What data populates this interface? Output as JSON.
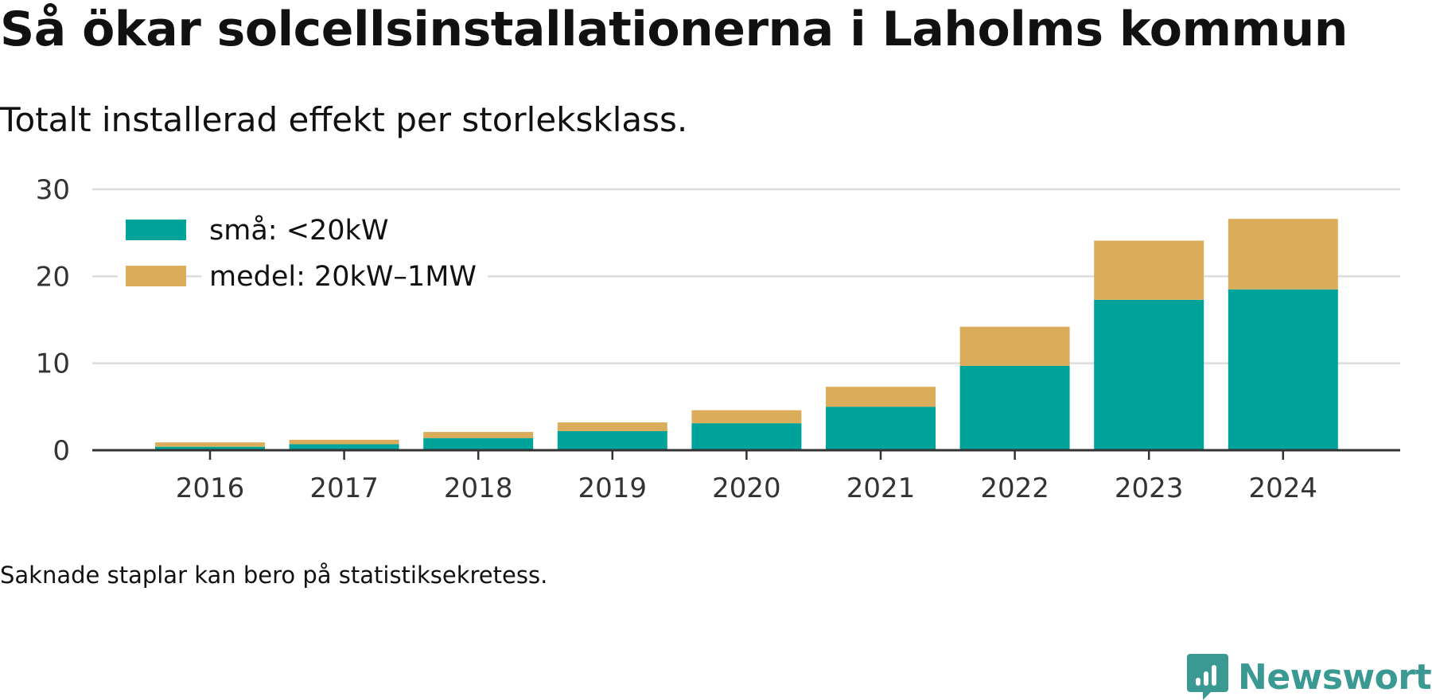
{
  "title": "Så ökar solcellsinstallationerna i Laholms kommun",
  "subtitle": "Totalt installerad effekt per storleksklass.",
  "footnote": "Saknade staplar kan bero på statistiksekretess.",
  "brand": {
    "name": "Newsworthy",
    "color": "#3a9a93",
    "icon": "newsworthy-logo-icon"
  },
  "chart_data": {
    "type": "bar",
    "stacked": true,
    "categories": [
      "2016",
      "2017",
      "2018",
      "2019",
      "2020",
      "2021",
      "2022",
      "2023",
      "2024"
    ],
    "series": [
      {
        "name": "små: <20kW",
        "color": "#00a39a",
        "values": [
          0.4,
          0.7,
          1.4,
          2.2,
          3.1,
          5.0,
          9.7,
          17.3,
          18.5
        ]
      },
      {
        "name": "medel: 20kW–1MW",
        "color": "#dbad5a",
        "values": [
          0.5,
          0.5,
          0.7,
          1.0,
          1.5,
          2.3,
          4.5,
          6.8,
          8.1
        ]
      }
    ],
    "xlabel": "",
    "ylabel": "",
    "ylim": [
      0,
      30
    ],
    "yticks": [
      0,
      10,
      20,
      30
    ],
    "grid": true,
    "legend_position": "top-left"
  }
}
